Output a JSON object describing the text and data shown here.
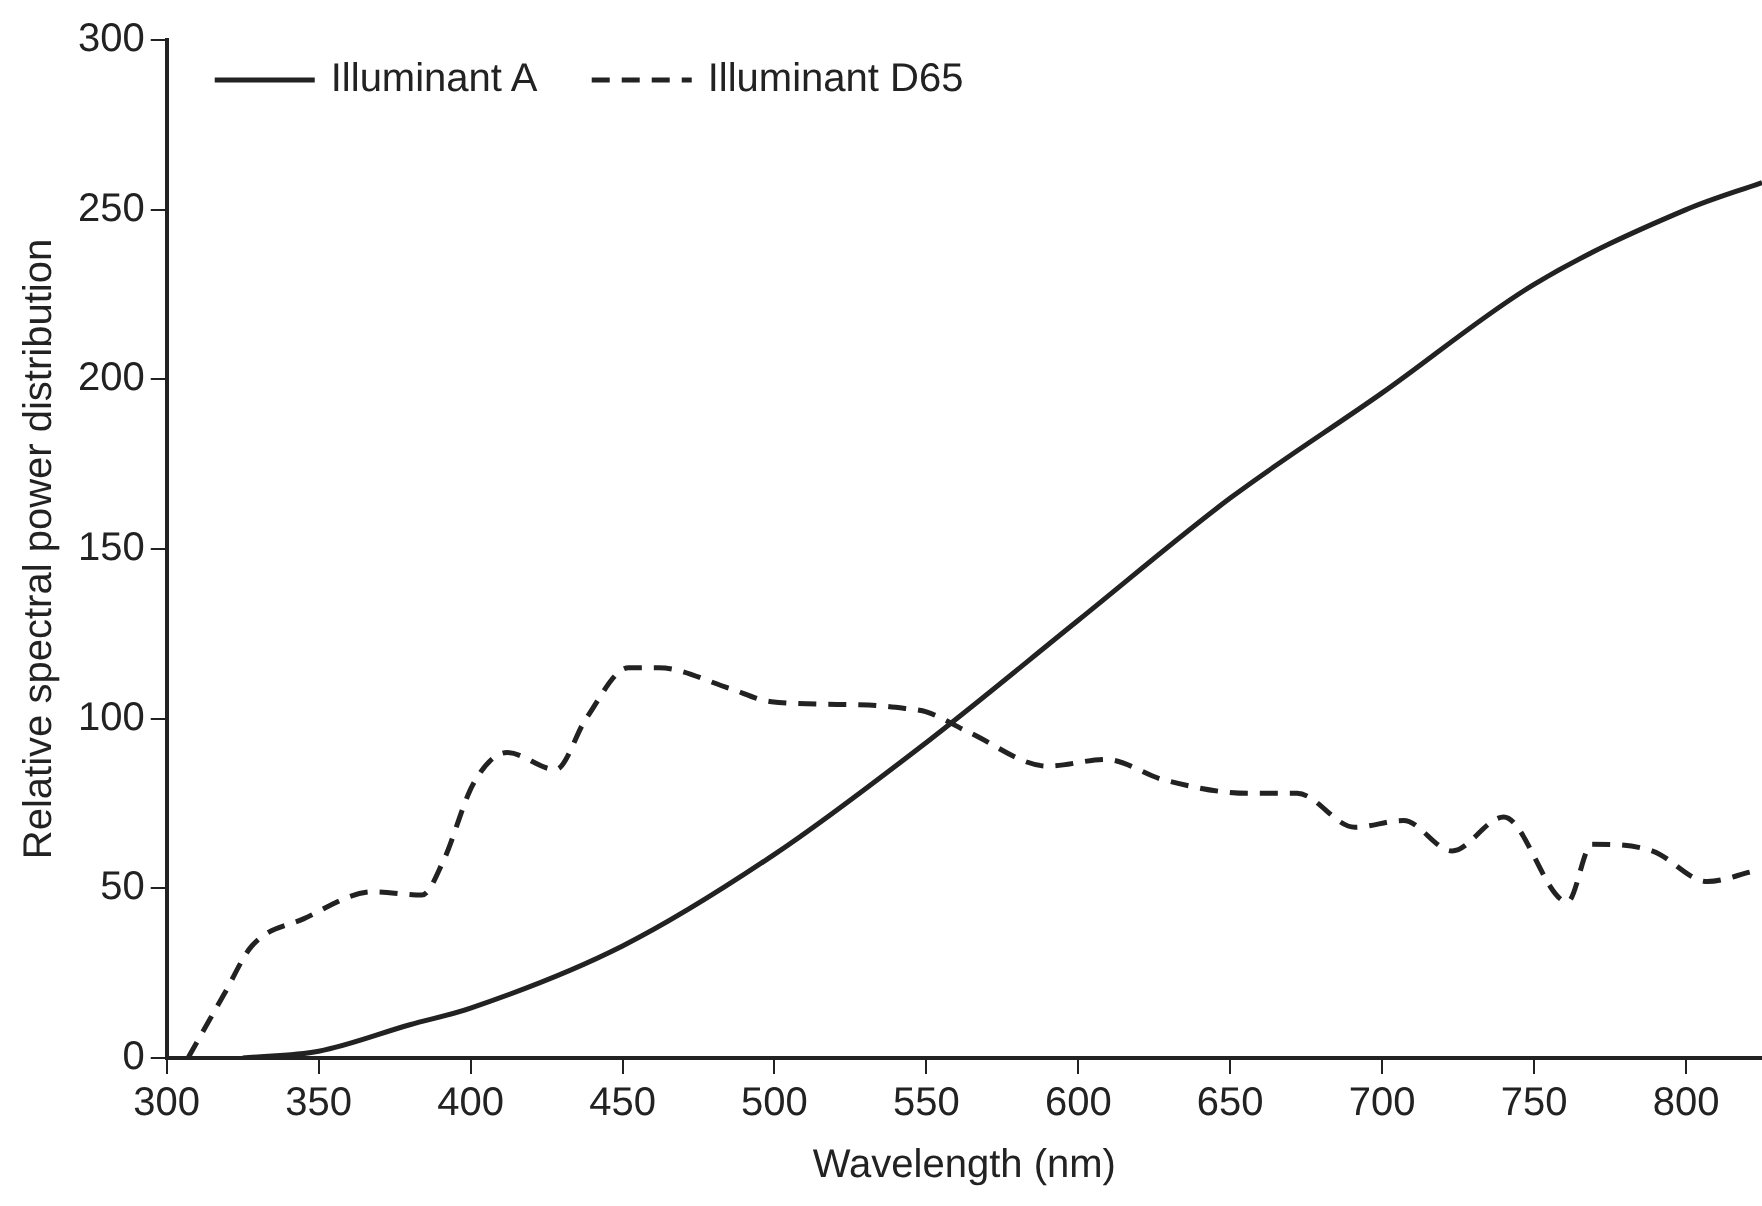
{
  "chart_data": {
    "type": "line",
    "xlabel": "Wavelength (nm)",
    "ylabel": "Relative spectral power distribution",
    "xlim": [
      300,
      825
    ],
    "xticks": [
      300,
      350,
      400,
      450,
      500,
      550,
      600,
      650,
      700,
      750,
      800
    ],
    "ylim": [
      0,
      300
    ],
    "yticks": [
      0,
      50,
      100,
      150,
      200,
      250,
      300
    ],
    "grid": false,
    "legend": "top left",
    "marker": "none",
    "series": [
      {
        "name": "Illuminant A",
        "color": "#222222",
        "line_style": "solid",
        "x": [
          325,
          350,
          380,
          400,
          450,
          500,
          550,
          600,
          650,
          700,
          750,
          800,
          825
        ],
        "values": [
          0,
          2,
          9.8,
          14.7,
          33,
          60,
          93,
          129,
          165,
          196,
          228,
          250,
          258
        ]
      },
      {
        "name": "Illuminant D65",
        "color": "#222222",
        "line_style": "dashed",
        "x": [
          307,
          319,
          328,
          345,
          368,
          384,
          391,
          401,
          412,
          428,
          438,
          452,
          462,
          485,
          499,
          531,
          543,
          550,
          564,
          590,
          609,
          628,
          656,
          672,
          691,
          707,
          723,
          740,
          761,
          769,
          789,
          807,
          822
        ],
        "values": [
          0,
          19,
          33,
          41,
          49,
          48,
          58,
          81,
          90,
          85,
          100,
          115,
          115,
          109,
          105,
          104,
          103,
          102,
          96,
          86,
          88,
          82,
          78,
          78,
          68,
          70,
          61,
          71,
          46,
          63,
          61,
          52,
          55
        ]
      }
    ]
  }
}
